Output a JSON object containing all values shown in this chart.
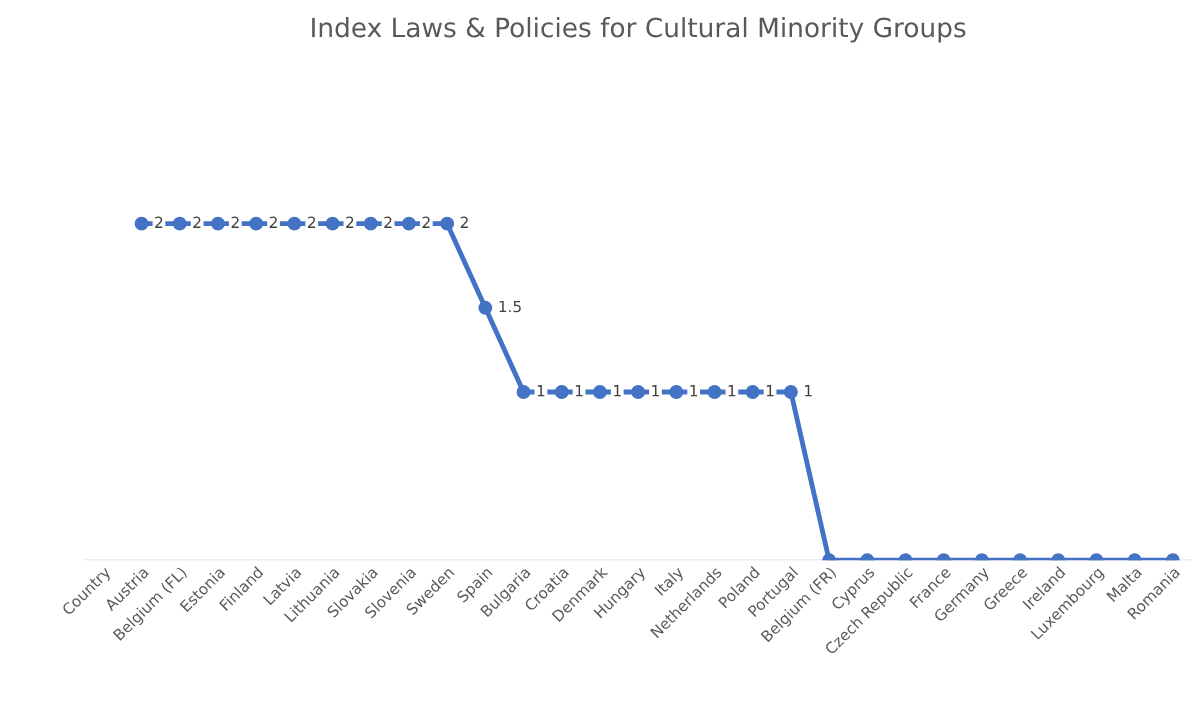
{
  "chart_data": {
    "type": "line",
    "title": "Index Laws & Policies for Cultural Minority Groups",
    "categories": [
      "Country",
      "Austria",
      "Belgium (FL)",
      "Estonia",
      "Finland",
      "Latvia",
      "Lithuania",
      "Slovakia",
      "Slovenia",
      "Sweden",
      "Spain",
      "Bulgaria",
      "Croatia",
      "Denmark",
      "Hungary",
      "Italy",
      "Netherlands",
      "Poland",
      "Portugal",
      "Belgium (FR)",
      "Cyprus",
      "Czech Republic",
      "France",
      "Germany",
      "Greece",
      "Ireland",
      "Luxembourg",
      "Malta",
      "Romania"
    ],
    "series": [
      {
        "color": "#4472c4",
        "values": [
          null,
          2,
          2,
          2,
          2,
          2,
          2,
          2,
          2,
          2,
          1.5,
          1,
          1,
          1,
          1,
          1,
          1,
          1,
          1,
          0,
          0,
          0,
          0,
          0,
          0,
          0,
          0,
          0,
          0
        ],
        "value_labels": [
          null,
          "2",
          "2",
          "2",
          "2",
          "2",
          "2",
          "2",
          "2",
          "2",
          "1.5",
          "1",
          "1",
          "1",
          "1",
          "1",
          "1",
          "1",
          "1",
          null,
          null,
          null,
          null,
          null,
          null,
          null,
          null,
          null,
          null
        ]
      }
    ],
    "marker": "circle",
    "line_style": "solid",
    "grid": false
  }
}
